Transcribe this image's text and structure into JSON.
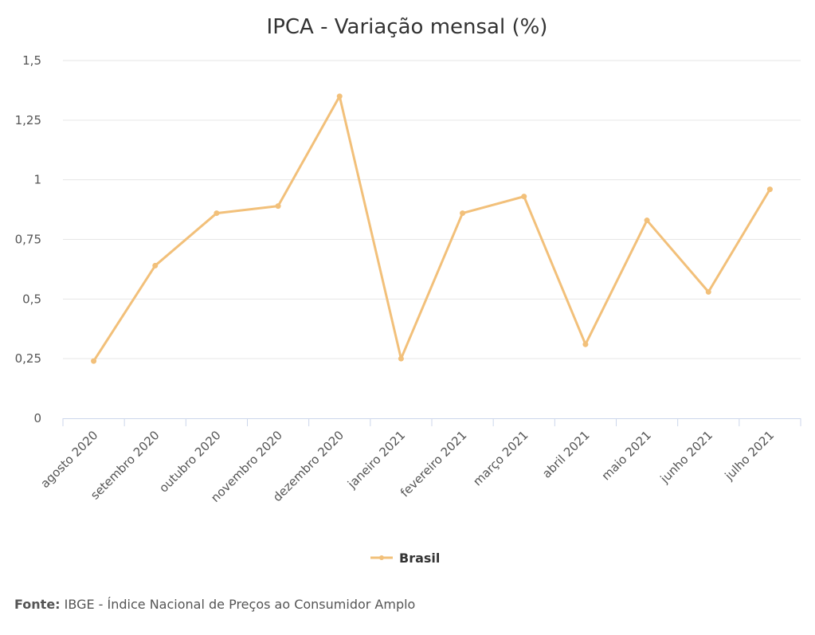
{
  "chart_data": {
    "type": "line",
    "title": "IPCA - Variação mensal (%)",
    "categories": [
      "agosto 2020",
      "setembro 2020",
      "outubro 2020",
      "novembro 2020",
      "dezembro 2020",
      "janeiro 2021",
      "fevereiro 2021",
      "março 2021",
      "abril 2021",
      "maio 2021",
      "junho 2021",
      "julho 2021"
    ],
    "series": [
      {
        "name": "Brasil",
        "values": [
          0.24,
          0.64,
          0.86,
          0.89,
          1.35,
          0.25,
          0.86,
          0.93,
          0.31,
          0.83,
          0.53,
          0.96
        ]
      }
    ],
    "yticks": [
      {
        "value": 0,
        "label": "0"
      },
      {
        "value": 0.25,
        "label": "0,25"
      },
      {
        "value": 0.5,
        "label": "0,5"
      },
      {
        "value": 0.75,
        "label": "0,75"
      },
      {
        "value": 1,
        "label": "1"
      },
      {
        "value": 1.25,
        "label": "1,25"
      },
      {
        "value": 1.5,
        "label": "1,5"
      }
    ],
    "ylim": [
      0,
      1.5
    ],
    "grid": true,
    "legend_position": "bottom-center",
    "series_color": "#f2c07a"
  },
  "source": {
    "label": "Fonte:",
    "text": "IBGE - Índice Nacional de Preços ao Consumidor Amplo"
  }
}
